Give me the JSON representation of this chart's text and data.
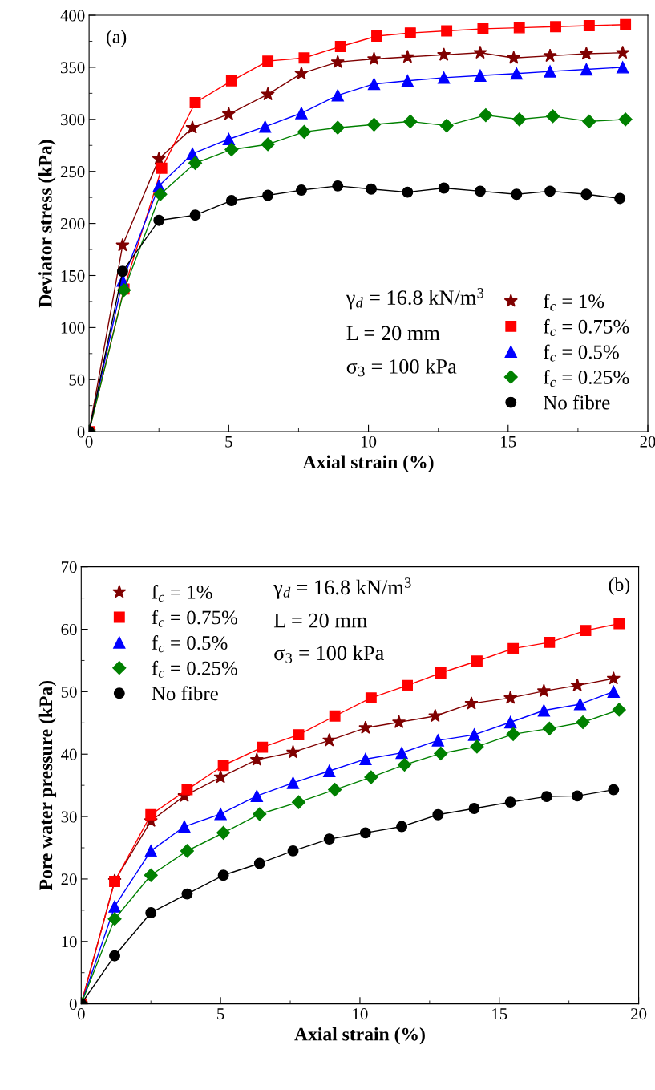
{
  "chart_data": [
    {
      "type": "line",
      "xlabel": "Axial strain (%)",
      "ylabel": "Deviator stress (kPa)",
      "xlim": [
        0,
        20
      ],
      "ylim": [
        0,
        400
      ],
      "xticks": [
        0,
        5,
        10,
        15,
        20
      ],
      "yticks": [
        0,
        50,
        100,
        150,
        200,
        250,
        300,
        350,
        400
      ],
      "legend": "lower right",
      "grid": false,
      "annotations": [
        "(a)",
        "γ$_{d}$ = 16.8 kN/m$^{3}$",
        "L = 20 mm",
        "σ$_{3}$ = 100 kPa"
      ],
      "series": [
        {
          "name": "f$_{c}$ = 1%",
          "color": "#7f0000",
          "marker": "star",
          "x": [
            0,
            1.2,
            2.5,
            3.7,
            5.0,
            6.4,
            7.6,
            8.9,
            10.2,
            11.4,
            12.7,
            14.0,
            15.2,
            16.5,
            17.8,
            19.1
          ],
          "values": [
            0,
            179,
            262,
            292,
            305,
            324,
            344,
            355,
            358,
            360,
            362,
            364,
            359,
            361,
            363,
            364
          ]
        },
        {
          "name": "f$_{c}$ = 0.75%",
          "color": "#ff0000",
          "marker": "square",
          "x": [
            0,
            1.25,
            2.6,
            3.8,
            5.1,
            6.4,
            7.7,
            9.0,
            10.3,
            11.5,
            12.8,
            14.1,
            15.4,
            16.7,
            17.9,
            19.2
          ],
          "values": [
            0,
            137,
            253,
            316,
            337,
            356,
            359,
            370,
            380,
            383,
            385,
            387,
            388,
            389,
            390,
            391
          ]
        },
        {
          "name": "f$_{c}$ = 0.5%",
          "color": "#0000ff",
          "marker": "triangle",
          "x": [
            0,
            1.2,
            2.5,
            3.7,
            5.0,
            6.3,
            7.6,
            8.9,
            10.2,
            11.4,
            12.7,
            14.0,
            15.3,
            16.5,
            17.8,
            19.1
          ],
          "values": [
            0,
            145,
            236,
            267,
            281,
            293,
            306,
            323,
            334,
            337,
            340,
            342,
            344,
            346,
            348,
            350
          ]
        },
        {
          "name": "f$_{c}$ = 0.25%",
          "color": "#008000",
          "marker": "diamond",
          "x": [
            0,
            1.25,
            2.55,
            3.8,
            5.1,
            6.4,
            7.7,
            8.9,
            10.2,
            11.5,
            12.8,
            14.2,
            15.4,
            16.6,
            17.9,
            19.2
          ],
          "values": [
            0,
            136,
            228,
            258,
            271,
            276,
            288,
            292,
            295,
            298,
            294,
            304,
            300,
            303,
            298,
            300
          ]
        },
        {
          "name": "No fibre",
          "color": "#000000",
          "marker": "circle",
          "x": [
            0,
            1.2,
            2.5,
            3.8,
            5.1,
            6.4,
            7.6,
            8.9,
            10.1,
            11.4,
            12.7,
            14.0,
            15.3,
            16.5,
            17.8,
            19.0
          ],
          "values": [
            0,
            154,
            203,
            208,
            222,
            227,
            232,
            236,
            233,
            230,
            234,
            231,
            228,
            231,
            228,
            224
          ]
        }
      ]
    },
    {
      "type": "line",
      "xlabel": "Axial strain (%)",
      "ylabel": "Pore water pressure (kPa)",
      "xlim": [
        0,
        20
      ],
      "ylim": [
        0,
        70
      ],
      "xticks": [
        0,
        5,
        10,
        15,
        20
      ],
      "yticks": [
        0,
        10,
        20,
        30,
        40,
        50,
        60,
        70
      ],
      "legend": "top left",
      "grid": false,
      "annotations": [
        "(b)",
        "γ$_{d}$ = 16.8 kN/m$^{3}$",
        "L = 20 mm",
        "σ$_{3}$ = 100 kPa"
      ],
      "series": [
        {
          "name": "f$_{c}$ = 1%",
          "color": "#7f0000",
          "marker": "star",
          "x": [
            0,
            1.2,
            2.5,
            3.7,
            5.0,
            6.3,
            7.6,
            8.9,
            10.2,
            11.4,
            12.7,
            14.0,
            15.4,
            16.6,
            17.8,
            19.1
          ],
          "values": [
            0,
            19.7,
            29.3,
            33.3,
            36.3,
            39.1,
            40.3,
            42.2,
            44.2,
            45.1,
            46.1,
            48.1,
            49.0,
            50.1,
            51.0,
            52.1
          ]
        },
        {
          "name": "f$_{c}$ = 0.75%",
          "color": "#ff0000",
          "marker": "square",
          "x": [
            0,
            1.2,
            2.5,
            3.8,
            5.1,
            6.5,
            7.8,
            9.1,
            10.4,
            11.7,
            12.9,
            14.2,
            15.5,
            16.8,
            18.1,
            19.3
          ],
          "values": [
            0,
            19.6,
            30.3,
            34.3,
            38.2,
            41.1,
            43.1,
            46.1,
            49.0,
            51.0,
            53.0,
            54.9,
            56.9,
            57.9,
            59.8,
            60.9
          ]
        },
        {
          "name": "f$_{c}$ = 0.5%",
          "color": "#0000ff",
          "marker": "triangle",
          "x": [
            0,
            1.2,
            2.5,
            3.7,
            5.0,
            6.3,
            7.6,
            8.9,
            10.2,
            11.5,
            12.8,
            14.1,
            15.4,
            16.6,
            17.9,
            19.1
          ],
          "values": [
            0,
            15.6,
            24.5,
            28.4,
            30.4,
            33.3,
            35.4,
            37.3,
            39.2,
            40.2,
            42.2,
            43.1,
            45.1,
            47.0,
            48.0,
            50.0
          ]
        },
        {
          "name": "f$_{c}$ = 0.25%",
          "color": "#008000",
          "marker": "diamond",
          "x": [
            0,
            1.2,
            2.5,
            3.8,
            5.1,
            6.4,
            7.8,
            9.1,
            10.4,
            11.6,
            12.9,
            14.2,
            15.5,
            16.8,
            18.0,
            19.3
          ],
          "values": [
            0,
            13.6,
            20.6,
            24.5,
            27.4,
            30.4,
            32.3,
            34.3,
            36.3,
            38.3,
            40.1,
            41.2,
            43.2,
            44.1,
            45.1,
            47.1
          ]
        },
        {
          "name": "No fibre",
          "color": "#000000",
          "marker": "circle",
          "x": [
            0,
            1.2,
            2.5,
            3.8,
            5.1,
            6.4,
            7.6,
            8.9,
            10.2,
            11.5,
            12.8,
            14.1,
            15.4,
            16.7,
            17.8,
            19.1
          ],
          "values": [
            0,
            7.7,
            14.6,
            17.6,
            20.6,
            22.5,
            24.5,
            26.4,
            27.4,
            28.4,
            30.3,
            31.3,
            32.3,
            33.2,
            33.3,
            34.3
          ]
        }
      ]
    }
  ]
}
